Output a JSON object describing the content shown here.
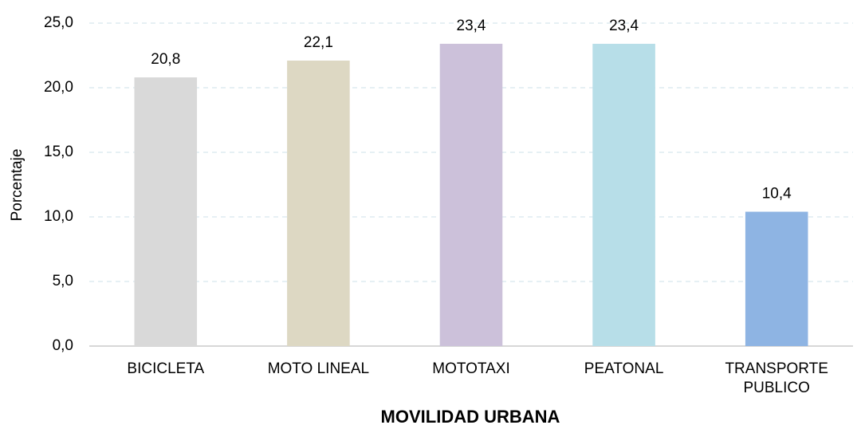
{
  "chart_data": {
    "type": "bar",
    "x_label": "MOVILIDAD URBANA",
    "y_label": "Porcentaje",
    "categories": [
      "BICICLETA",
      "MOTO LINEAL",
      "MOTOTAXI",
      "PEATONAL",
      "TRANSPORTE PUBLICO"
    ],
    "values": [
      20.8,
      22.1,
      23.4,
      23.4,
      10.4
    ],
    "value_labels": [
      "20,8",
      "22,1",
      "23,4",
      "23,4",
      "10,4"
    ],
    "colors": [
      "#d9d9d9",
      "#ddd8c3",
      "#ccc1da",
      "#b7dee8",
      "#8eb4e3"
    ],
    "ylim": [
      0,
      25
    ],
    "yticks": [
      {
        "value": 0,
        "label": "0,0"
      },
      {
        "value": 5,
        "label": "5,0"
      },
      {
        "value": 10,
        "label": "10,0"
      },
      {
        "value": 15,
        "label": "15,0"
      },
      {
        "value": 20,
        "label": "20,0"
      },
      {
        "value": 25,
        "label": "25,0"
      }
    ],
    "grid": true
  }
}
